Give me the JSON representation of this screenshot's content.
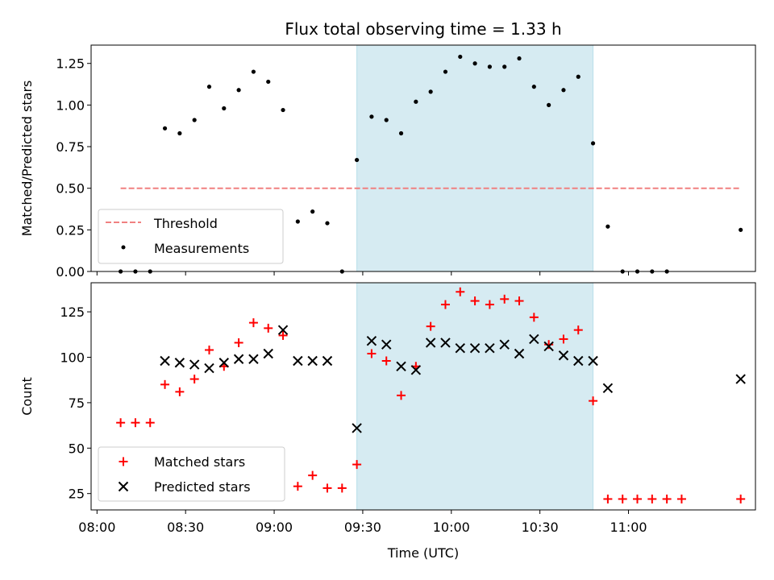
{
  "chart_data": [
    {
      "type": "scatter",
      "title": "Flux total observing time = 1.33 h",
      "xlabel": "",
      "ylabel": "Matched/Predicted stars",
      "ylim": [
        0,
        1.36
      ],
      "yticks": [
        "0.00",
        "0.25",
        "0.50",
        "0.75",
        "1.00",
        "1.25"
      ],
      "xlim": [
        "07:58",
        "11:43"
      ],
      "highlight_span": {
        "x": [
          "09:28",
          "10:48"
        ],
        "color": "#add8e6"
      },
      "legend": {
        "placement": "lower-left"
      },
      "threshold": {
        "name": "Threshold",
        "value": 0.5,
        "x": [
          "08:08",
          "11:38"
        ],
        "color": "#f08080",
        "style": "dashed"
      },
      "series": [
        {
          "name": "Measurements",
          "marker": "dot",
          "color": "#000000",
          "x": [
            "08:08",
            "08:13",
            "08:18",
            "08:23",
            "08:28",
            "08:33",
            "08:38",
            "08:43",
            "08:48",
            "08:53",
            "08:58",
            "09:03",
            "09:08",
            "09:13",
            "09:18",
            "09:23",
            "09:28",
            "09:33",
            "09:38",
            "09:43",
            "09:48",
            "09:53",
            "09:58",
            "10:03",
            "10:08",
            "10:13",
            "10:18",
            "10:23",
            "10:28",
            "10:33",
            "10:38",
            "10:43",
            "10:48",
            "10:53",
            "10:58",
            "11:03",
            "11:08",
            "11:13",
            "11:18",
            "11:38"
          ],
          "y": [
            0,
            0,
            0,
            0.86,
            0.83,
            0.91,
            1.11,
            0.98,
            1.09,
            1.2,
            1.14,
            0.97,
            0.3,
            0.36,
            0.29,
            0,
            0.67,
            0.93,
            0.91,
            0.83,
            1.02,
            1.08,
            1.2,
            1.29,
            1.25,
            1.23,
            1.23,
            1.28,
            1.11,
            1.0,
            1.09,
            1.17,
            0.77,
            0.27,
            0,
            0,
            0,
            0,
            null,
            0.25
          ]
        }
      ]
    },
    {
      "type": "scatter",
      "title": "",
      "xlabel": "Time (UTC)",
      "ylabel": "Count",
      "ylim": [
        16,
        141
      ],
      "yticks": [
        "25",
        "50",
        "75",
        "100",
        "125"
      ],
      "xticks": [
        "08:00",
        "08:30",
        "09:00",
        "09:30",
        "10:00",
        "10:30",
        "11:00"
      ],
      "xlim": [
        "07:58",
        "11:43"
      ],
      "highlight_span": {
        "x": [
          "09:28",
          "10:48"
        ],
        "color": "#add8e6"
      },
      "legend": {
        "placement": "lower-left"
      },
      "series": [
        {
          "name": "Matched stars",
          "marker": "plus",
          "color": "#ff0000",
          "x": [
            "08:08",
            "08:13",
            "08:18",
            "08:23",
            "08:28",
            "08:33",
            "08:38",
            "08:43",
            "08:48",
            "08:53",
            "08:58",
            "09:03",
            "09:08",
            "09:13",
            "09:18",
            "09:23",
            "09:28",
            "09:33",
            "09:38",
            "09:43",
            "09:48",
            "09:53",
            "09:58",
            "10:03",
            "10:08",
            "10:13",
            "10:18",
            "10:23",
            "10:28",
            "10:33",
            "10:38",
            "10:43",
            "10:48",
            "10:53",
            "10:58",
            "11:03",
            "11:08",
            "11:13",
            "11:18",
            "11:38"
          ],
          "y": [
            64,
            64,
            64,
            85,
            81,
            88,
            104,
            95,
            108,
            119,
            116,
            112,
            29,
            35,
            28,
            28,
            41,
            102,
            98,
            79,
            95,
            117,
            129,
            136,
            131,
            129,
            132,
            131,
            122,
            107,
            110,
            115,
            76,
            22,
            22,
            22,
            22,
            22,
            22,
            22
          ]
        },
        {
          "name": "Predicted stars",
          "marker": "x",
          "color": "#000000",
          "x": [
            "08:23",
            "08:28",
            "08:33",
            "08:38",
            "08:43",
            "08:48",
            "08:53",
            "08:58",
            "09:03",
            "09:08",
            "09:13",
            "09:18",
            "09:28",
            "09:33",
            "09:38",
            "09:43",
            "09:48",
            "09:53",
            "09:58",
            "10:03",
            "10:08",
            "10:13",
            "10:18",
            "10:23",
            "10:28",
            "10:33",
            "10:38",
            "10:43",
            "10:48",
            "10:53",
            "11:38"
          ],
          "y": [
            98,
            97,
            96,
            94,
            97,
            99,
            99,
            102,
            115,
            98,
            98,
            98,
            61,
            109,
            107,
            95,
            93,
            108,
            108,
            105,
            105,
            105,
            107,
            102,
            110,
            106,
            101,
            98,
            98,
            83,
            88
          ]
        }
      ]
    }
  ]
}
